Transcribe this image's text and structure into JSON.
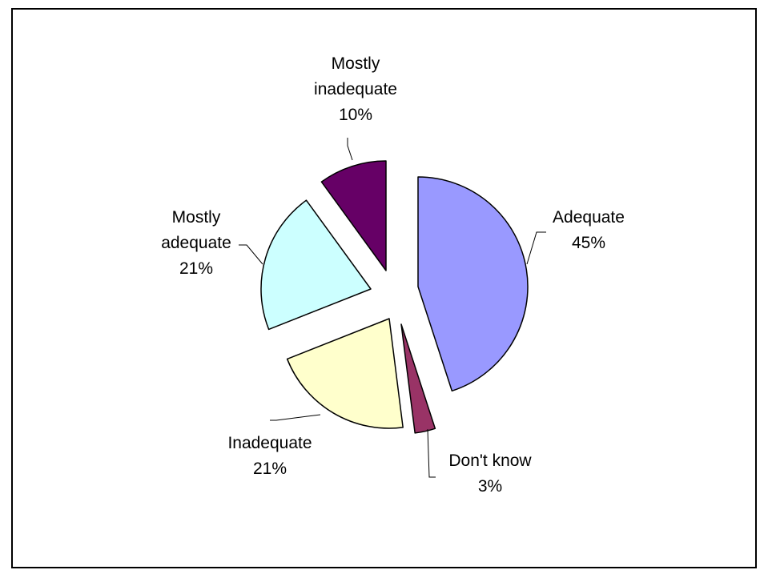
{
  "chart_data": {
    "type": "pie",
    "title": "",
    "legend": "none",
    "slices": [
      {
        "name": "Adequate",
        "value": 45,
        "label": [
          "Adequate",
          "45%"
        ],
        "color": "#9999ff"
      },
      {
        "name": "Don't know",
        "value": 3,
        "label": [
          "Don't know",
          "3%"
        ],
        "color": "#993366"
      },
      {
        "name": "Inadequate",
        "value": 21,
        "label": [
          "Inadequate",
          "21%"
        ],
        "color": "#ffffcc"
      },
      {
        "name": "Mostly adequate",
        "value": 21,
        "label": [
          "Mostly",
          "adequate",
          "21%"
        ],
        "color": "#ccffff"
      },
      {
        "name": "Mostly inadequate",
        "value": 10,
        "label": [
          "Mostly",
          "inadequate",
          "10%"
        ],
        "color": "#660066"
      }
    ]
  }
}
